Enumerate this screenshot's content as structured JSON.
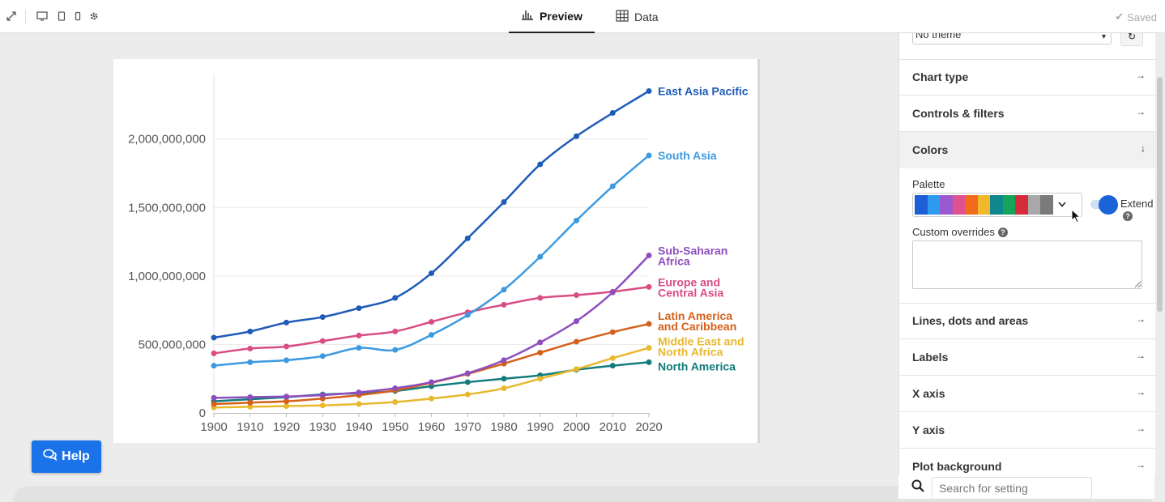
{
  "toolbar": {
    "icons": [
      "expand-icon",
      "desktop-icon",
      "tablet-icon",
      "mobile-icon",
      "gear-icon"
    ],
    "tabs": [
      {
        "label": "Preview",
        "icon": "bar-chart-icon"
      },
      {
        "label": "Data",
        "icon": "table-icon"
      }
    ],
    "saved_label": "Saved"
  },
  "help": {
    "label": "Help"
  },
  "panel": {
    "theme_value": "No theme",
    "sections": [
      {
        "label": "Chart type"
      },
      {
        "label": "Controls & filters"
      },
      {
        "label": "Colors"
      },
      {
        "label": "Lines, dots and areas"
      },
      {
        "label": "Labels"
      },
      {
        "label": "X axis"
      },
      {
        "label": "Y axis"
      },
      {
        "label": "Plot background"
      }
    ],
    "colors": {
      "palette_label": "Palette",
      "palette": [
        "#1d5ed6",
        "#2e9bf0",
        "#9b59d0",
        "#e0518f",
        "#f26a1b",
        "#f0b82a",
        "#10868f",
        "#16a35a",
        "#d62b3a",
        "#a8a8a8",
        "#7a7a7a"
      ],
      "extend_label": "Extend",
      "overrides_label": "Custom overrides"
    },
    "search_placeholder": "Search for setting"
  },
  "chart_data": {
    "type": "line",
    "title": "",
    "xlabel": "",
    "ylabel": "",
    "x": [
      1900,
      1910,
      1920,
      1930,
      1940,
      1950,
      1960,
      1970,
      1980,
      1990,
      2000,
      2010,
      2020
    ],
    "ylim": [
      0,
      2400000000
    ],
    "y_ticks": [
      "0",
      "500,000,000",
      "1,000,000,000",
      "1,500,000,000",
      "2,000,000,000"
    ],
    "x_ticks": [
      "1900",
      "1910",
      "1920",
      "1930",
      "1940",
      "1950",
      "1960",
      "1970",
      "1980",
      "1990",
      "2000",
      "2010",
      "2020"
    ],
    "series": [
      {
        "name": "East Asia Pacific",
        "label_lines": [
          "East Asia Pacific"
        ],
        "color": "#1f5bb8",
        "values": [
          550000000,
          595000000,
          660000000,
          700000000,
          765000000,
          840000000,
          1020000000,
          1275000000,
          1540000000,
          1815000000,
          2020000000,
          2190000000,
          2350000000
        ]
      },
      {
        "name": "South Asia",
        "label_lines": [
          "South Asia"
        ],
        "color": "#3d9ae0",
        "values": [
          345000000,
          370000000,
          385000000,
          415000000,
          475000000,
          460000000,
          570000000,
          715000000,
          900000000,
          1140000000,
          1405000000,
          1655000000,
          1880000000
        ]
      },
      {
        "name": "Sub-Saharan Africa",
        "label_lines": [
          "Sub-Saharan",
          "Africa"
        ],
        "color": "#8e4ec0",
        "values": [
          110000000,
          115000000,
          120000000,
          130000000,
          150000000,
          180000000,
          225000000,
          290000000,
          385000000,
          515000000,
          670000000,
          880000000,
          1150000000
        ]
      },
      {
        "name": "Europe and Central Asia",
        "label_lines": [
          "Europe and",
          "Central Asia"
        ],
        "color": "#d84d83",
        "values": [
          435000000,
          470000000,
          485000000,
          525000000,
          565000000,
          595000000,
          665000000,
          735000000,
          790000000,
          840000000,
          860000000,
          885000000,
          920000000
        ]
      },
      {
        "name": "Latin America and Caribbean",
        "label_lines": [
          "Latin America",
          "and Caribbean"
        ],
        "color": "#d4601a",
        "values": [
          65000000,
          75000000,
          85000000,
          105000000,
          130000000,
          165000000,
          220000000,
          285000000,
          360000000,
          440000000,
          520000000,
          590000000,
          650000000
        ]
      },
      {
        "name": "Middle East and North Africa",
        "label_lines": [
          "Middle East and",
          "North Africa"
        ],
        "color": "#e8b82e",
        "values": [
          40000000,
          45000000,
          50000000,
          55000000,
          65000000,
          80000000,
          105000000,
          135000000,
          180000000,
          250000000,
          320000000,
          400000000,
          475000000
        ]
      },
      {
        "name": "North America",
        "label_lines": [
          "North America"
        ],
        "color": "#137c7c",
        "values": [
          85000000,
          100000000,
          115000000,
          135000000,
          145000000,
          160000000,
          195000000,
          225000000,
          250000000,
          275000000,
          315000000,
          345000000,
          370000000
        ]
      }
    ]
  }
}
